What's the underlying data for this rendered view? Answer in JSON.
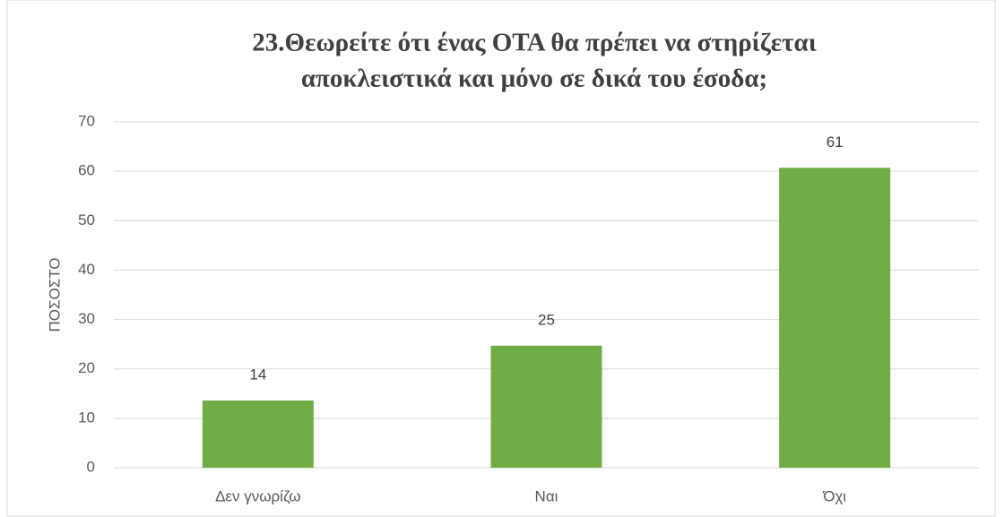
{
  "chart_data": {
    "type": "bar",
    "title": [
      "23.Θεωρείτε ότι ένας ΟΤΑ θα πρέπει να στηρίζεται",
      "αποκλειστικά και μόνο σε δικά του έσοδα;"
    ],
    "y_label": "ΠΟΣΟΣΤΟ",
    "categories": [
      "Δεν γνωρίζω",
      "Ναι",
      "Όχι"
    ],
    "values": [
      13.6,
      24.7,
      60.7
    ],
    "value_labels": [
      "14",
      "25",
      "61"
    ],
    "color": "#70ad47",
    "ylim": [
      0,
      70
    ],
    "yticks": [
      0,
      10,
      20,
      30,
      40,
      50,
      60,
      70
    ],
    "grid": true
  }
}
